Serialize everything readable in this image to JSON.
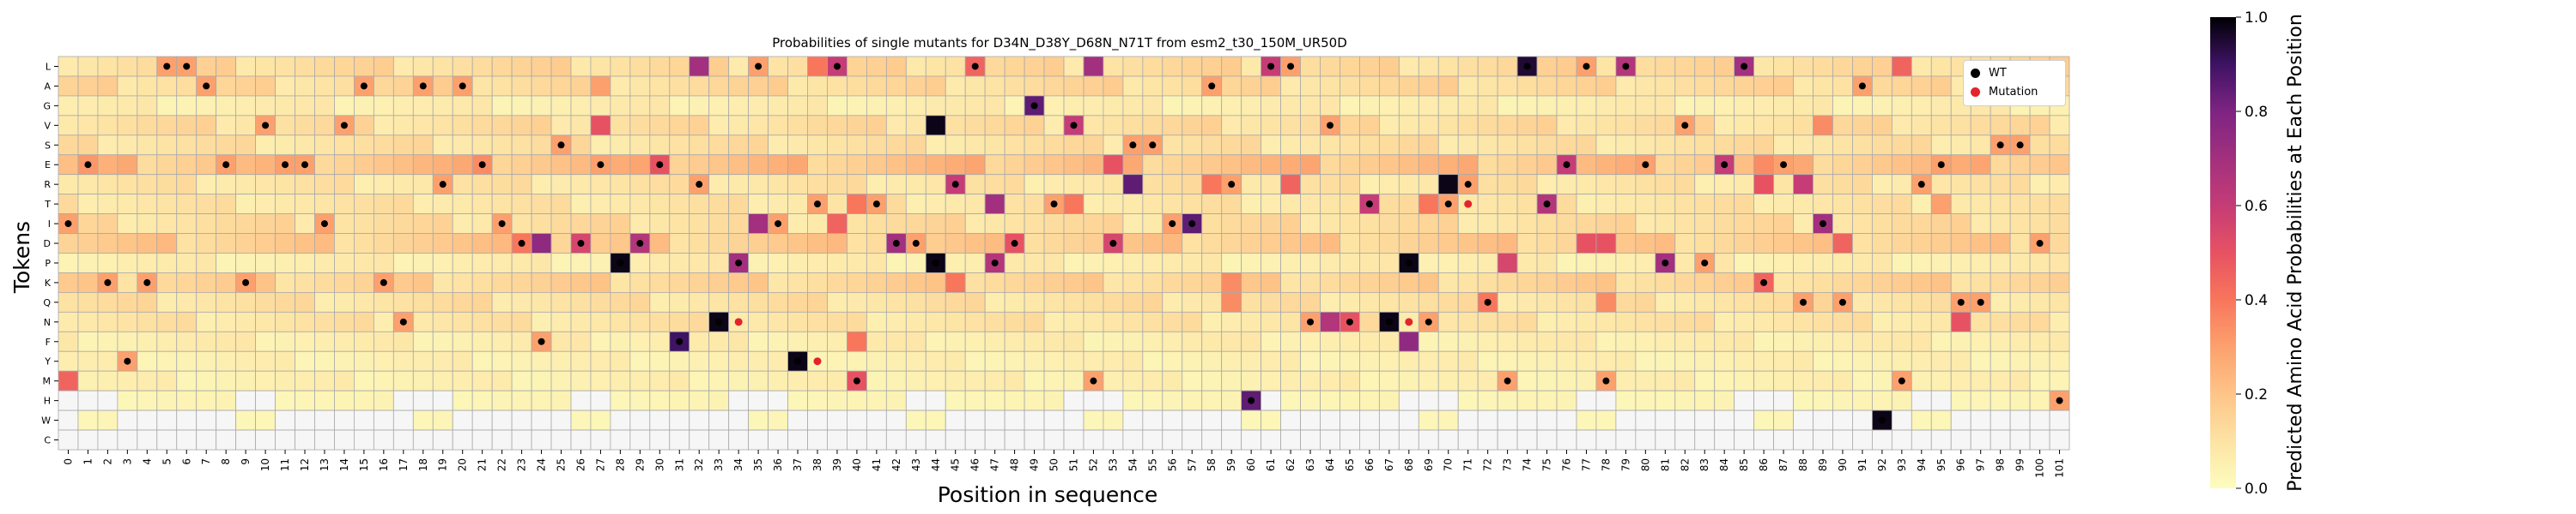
{
  "chart_data": {
    "type": "heatmap",
    "title": "Probabilities of single mutants for D34N_D38Y_D68N_N71T from esm2_t30_150M_UR50D",
    "xlabel": "Position in sequence",
    "ylabel": "Tokens",
    "colorbar_label": "Predicted Amino Acid Probabilities at Each Position",
    "colormap": "magma_r",
    "vmin": 0.0,
    "vmax": 1.0,
    "colorbar_ticks": [
      "0.0",
      "0.2",
      "0.4",
      "0.6",
      "0.8",
      "1.0"
    ],
    "tokens": [
      "L",
      "A",
      "G",
      "V",
      "S",
      "E",
      "R",
      "T",
      "I",
      "D",
      "P",
      "K",
      "Q",
      "N",
      "F",
      "Y",
      "M",
      "H",
      "W",
      "C"
    ],
    "positions": [
      "0",
      "1",
      "2",
      "3",
      "4",
      "5",
      "6",
      "7",
      "8",
      "9",
      "10",
      "11",
      "12",
      "13",
      "14",
      "15",
      "16",
      "17",
      "18",
      "19",
      "20",
      "21",
      "22",
      "23",
      "24",
      "25",
      "26",
      "27",
      "28",
      "29",
      "30",
      "31",
      "32",
      "33",
      "34",
      "35",
      "36",
      "37",
      "38",
      "39",
      "40",
      "41",
      "42",
      "43",
      "44",
      "45",
      "46",
      "47",
      "48",
      "49",
      "50",
      "51",
      "52",
      "53",
      "54",
      "55",
      "56",
      "57",
      "58",
      "59",
      "60",
      "61",
      "62",
      "63",
      "64",
      "65",
      "66",
      "67",
      "68",
      "69",
      "70",
      "71",
      "72",
      "73",
      "74",
      "75",
      "76",
      "77",
      "78",
      "79",
      "80",
      "81",
      "82",
      "83",
      "84",
      "85",
      "86",
      "87",
      "88",
      "89",
      "90",
      "91",
      "92",
      "93",
      "94",
      "95",
      "96",
      "97",
      "98",
      "99",
      "100",
      "101"
    ],
    "wild_type": [
      "I",
      "E",
      "K",
      "Y",
      "K",
      "L",
      "L",
      "A",
      "E",
      "K",
      "V",
      "E",
      "E",
      "I",
      "V",
      "A",
      "K",
      "N",
      "A",
      "R",
      "A",
      "E",
      "I",
      "D",
      "F",
      "S",
      "D",
      "E",
      "P",
      "D",
      "E",
      "F",
      "R",
      "N",
      "P",
      "L",
      "I",
      "Y",
      "T",
      "L",
      "M",
      "T",
      "D",
      "D",
      "P",
      "R",
      "L",
      "P",
      "D",
      "G",
      "T",
      "V",
      "M",
      "D",
      "S",
      "S",
      "I",
      "I",
      "A",
      "R",
      "H",
      "L",
      "L",
      "N",
      "V",
      "N",
      "T",
      "N",
      "P",
      "N",
      "T",
      "R",
      "Q",
      "M",
      "L",
      "T",
      "E",
      "L",
      "M",
      "L",
      "E",
      "P",
      "V",
      "P",
      "E",
      "L",
      "K",
      "E",
      "Q",
      "I",
      "Q",
      "A",
      "W",
      "M",
      "R",
      "E",
      "Q",
      "Q",
      "S",
      "S",
      "D",
      "H"
    ],
    "mutations": [
      [
        "D",
        34,
        "N"
      ],
      [
        "D",
        38,
        "Y"
      ],
      [
        "D",
        68,
        "N"
      ],
      [
        "N",
        71,
        "T"
      ]
    ],
    "high_probability_cells": [
      [
        "L",
        32,
        0.7
      ],
      [
        "L",
        52,
        0.7
      ],
      [
        "L",
        61,
        0.6
      ],
      [
        "L",
        74,
        0.95
      ],
      [
        "L",
        79,
        0.65
      ],
      [
        "L",
        85,
        0.7
      ],
      [
        "L",
        39,
        0.6
      ],
      [
        "L",
        46,
        0.45
      ],
      [
        "L",
        93,
        0.45
      ],
      [
        "L",
        38,
        0.4
      ],
      [
        "A",
        27,
        0.3
      ],
      [
        "G",
        49,
        0.85
      ],
      [
        "V",
        27,
        0.5
      ],
      [
        "V",
        44,
        0.98
      ],
      [
        "V",
        51,
        0.6
      ],
      [
        "V",
        82,
        0.3
      ],
      [
        "V",
        89,
        0.35
      ],
      [
        "E",
        1,
        0.32
      ],
      [
        "E",
        21,
        0.35
      ],
      [
        "E",
        30,
        0.5
      ],
      [
        "E",
        53,
        0.5
      ],
      [
        "E",
        76,
        0.6
      ],
      [
        "E",
        84,
        0.6
      ],
      [
        "E",
        86,
        0.35
      ],
      [
        "R",
        45,
        0.6
      ],
      [
        "R",
        54,
        0.85
      ],
      [
        "R",
        58,
        0.4
      ],
      [
        "R",
        70,
        0.98
      ],
      [
        "R",
        88,
        0.6
      ],
      [
        "R",
        86,
        0.5
      ],
      [
        "R",
        62,
        0.45
      ],
      [
        "T",
        47,
        0.7
      ],
      [
        "T",
        66,
        0.6
      ],
      [
        "T",
        75,
        0.65
      ],
      [
        "T",
        40,
        0.4
      ],
      [
        "T",
        51,
        0.4
      ],
      [
        "T",
        69,
        0.4
      ],
      [
        "T",
        95,
        0.3
      ],
      [
        "I",
        35,
        0.7
      ],
      [
        "I",
        57,
        0.85
      ],
      [
        "I",
        89,
        0.7
      ],
      [
        "I",
        39,
        0.45
      ],
      [
        "D",
        24,
        0.75
      ],
      [
        "D",
        26,
        0.55
      ],
      [
        "D",
        29,
        0.65
      ],
      [
        "D",
        42,
        0.7
      ],
      [
        "D",
        48,
        0.5
      ],
      [
        "D",
        53,
        0.55
      ],
      [
        "D",
        77,
        0.5
      ],
      [
        "D",
        78,
        0.5
      ],
      [
        "D",
        90,
        0.45
      ],
      [
        "D",
        23,
        0.4
      ],
      [
        "P",
        28,
        0.98
      ],
      [
        "P",
        34,
        0.7
      ],
      [
        "P",
        44,
        0.98
      ],
      [
        "P",
        47,
        0.65
      ],
      [
        "P",
        68,
        0.98
      ],
      [
        "P",
        73,
        0.55
      ],
      [
        "P",
        81,
        0.7
      ],
      [
        "K",
        45,
        0.4
      ],
      [
        "K",
        59,
        0.35
      ],
      [
        "K",
        86,
        0.45
      ],
      [
        "Q",
        59,
        0.35
      ],
      [
        "Q",
        72,
        0.4
      ],
      [
        "Q",
        78,
        0.35
      ],
      [
        "N",
        33,
        0.98
      ],
      [
        "N",
        64,
        0.65
      ],
      [
        "N",
        65,
        0.5
      ],
      [
        "N",
        67,
        0.98
      ],
      [
        "N",
        96,
        0.5
      ],
      [
        "F",
        31,
        0.9
      ],
      [
        "F",
        40,
        0.4
      ],
      [
        "F",
        68,
        0.75
      ],
      [
        "Y",
        37,
        0.98
      ],
      [
        "M",
        0,
        0.45
      ],
      [
        "M",
        40,
        0.5
      ],
      [
        "H",
        60,
        0.85
      ],
      [
        "W",
        92,
        0.98
      ]
    ]
  },
  "legend": {
    "wt_label": "WT",
    "mutation_label": "Mutation",
    "wt_color": "#000000",
    "mutation_color": "#e3242b"
  }
}
